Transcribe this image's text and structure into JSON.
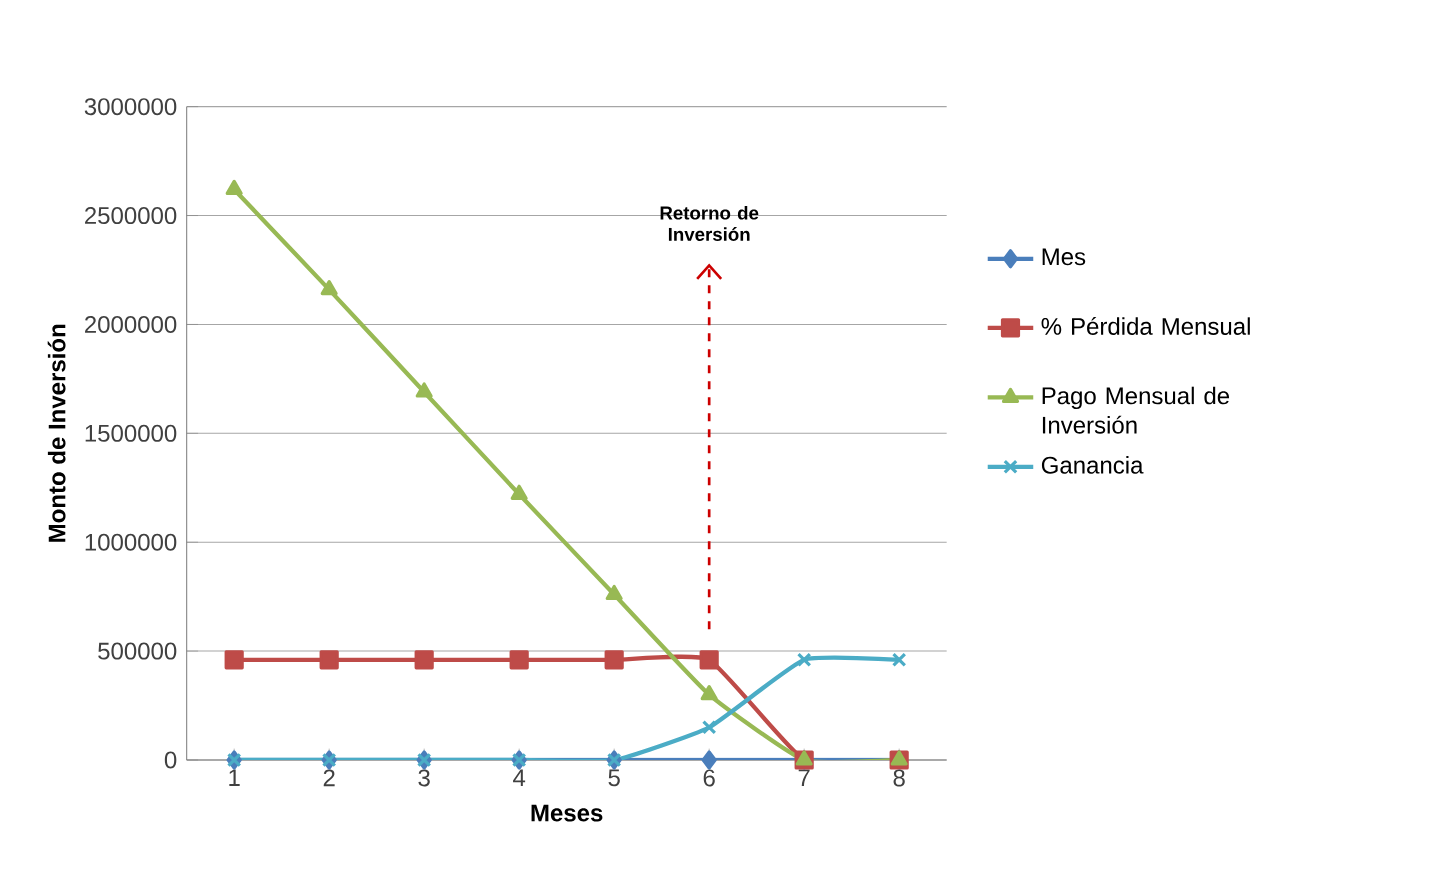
{
  "chart_data": {
    "type": "line",
    "xlabel": "Meses",
    "ylabel": "Monto de Inversión",
    "categories": [
      "1",
      "2",
      "3",
      "4",
      "5",
      "6",
      "7",
      "8"
    ],
    "series": [
      {
        "name": "Mes",
        "color": "#4a7ebb",
        "marker": "diamond",
        "values": [
          0,
          0,
          0,
          0,
          0,
          0,
          0,
          0
        ]
      },
      {
        "name": "% Pérdida Mensual",
        "color": "#be4b48",
        "marker": "square",
        "values": [
          460000,
          460000,
          460000,
          460000,
          460000,
          460000,
          0,
          0
        ]
      },
      {
        "name": "Pago Mensual de Inversión",
        "color": "#98b954",
        "marker": "triangle",
        "values": [
          2620000,
          2160000,
          1690000,
          1220000,
          760000,
          300000,
          0,
          0
        ]
      },
      {
        "name": "Ganancia",
        "color": "#4bacc6",
        "marker": "cross",
        "values": [
          0,
          0,
          0,
          0,
          0,
          150000,
          460000,
          460000
        ]
      }
    ],
    "ylim": [
      0,
      3000000
    ],
    "yticks": [
      0,
      500000,
      1000000,
      1500000,
      2000000,
      2500000,
      3000000
    ],
    "grid": "y",
    "legend": "right",
    "annotations": [
      "Retorno de Inversión"
    ]
  }
}
